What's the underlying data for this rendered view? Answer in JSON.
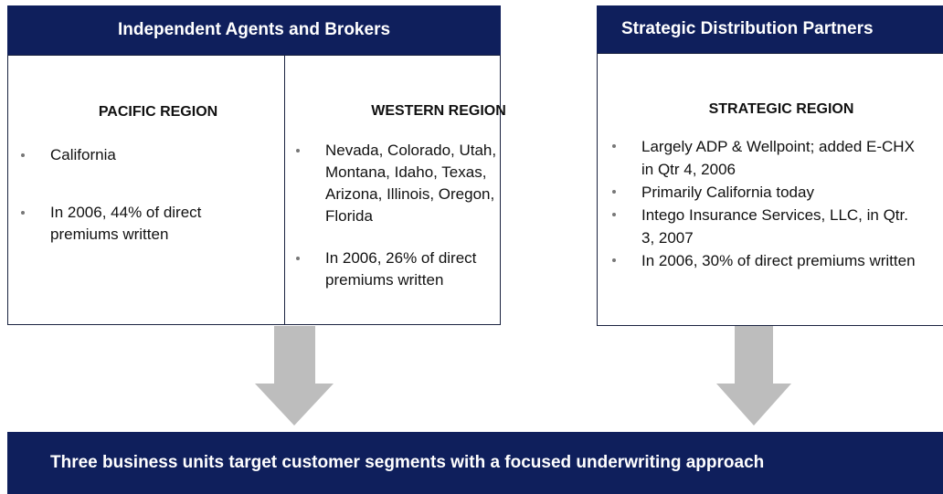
{
  "left_panel": {
    "title": "Independent Agents and Brokers",
    "columns": [
      {
        "heading": "PACIFIC REGION",
        "bullets": [
          "California",
          "In 2006, 44% of direct premiums written"
        ]
      },
      {
        "heading": "WESTERN REGION",
        "bullets": [
          "Nevada, Colorado, Utah, Montana, Idaho, Texas, Arizona, Illinois, Oregon, Florida",
          "In 2006, 26% of direct premiums written"
        ]
      }
    ]
  },
  "right_panel": {
    "title": "Strategic Distribution Partners",
    "columns": [
      {
        "heading": "STRATEGIC REGION",
        "bullets": [
          "Largely ADP & Wellpoint; added E-CHX in Qtr 4, 2006",
          "Primarily California today",
          "Intego Insurance Services, LLC, in Qtr. 3, 2007",
          "In 2006, 30% of direct premiums written"
        ]
      }
    ]
  },
  "banner": {
    "text": "Three business units target customer segments with a focused underwriting approach"
  }
}
